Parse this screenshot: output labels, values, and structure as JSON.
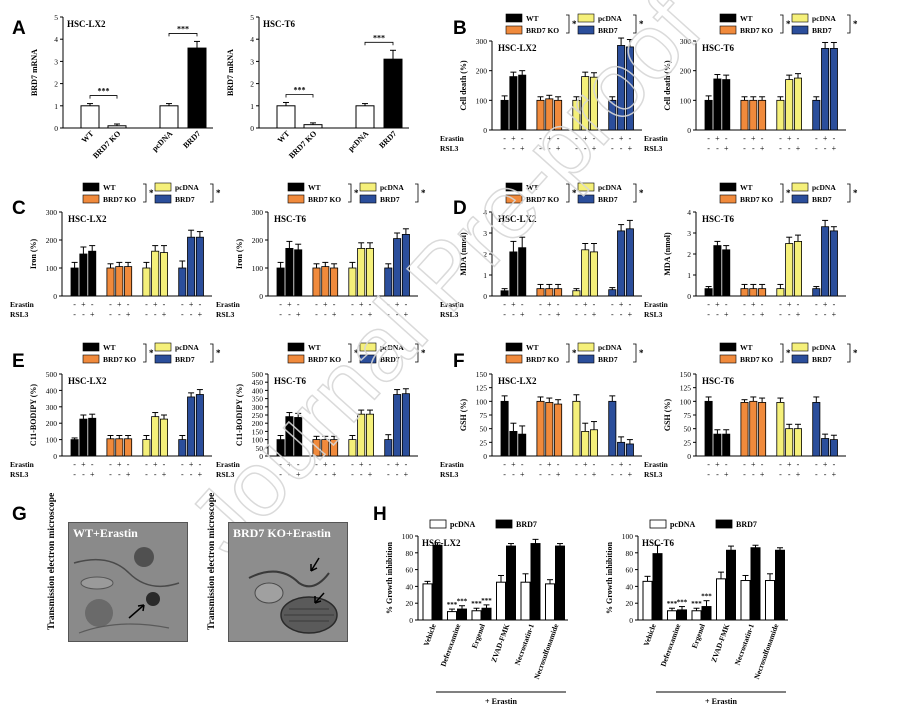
{
  "colors": {
    "wt": "#ffffff",
    "ko": "#000000",
    "ko_b": "#f08a3c",
    "pcdna": "#f5f07a",
    "brd7": "#2b4e9b",
    "watermark": "#d6d6d6"
  },
  "watermark_text": "Journal Pre-proof",
  "panels": {
    "A": {
      "letter": "A"
    },
    "B": {
      "letter": "B"
    },
    "C": {
      "letter": "C"
    },
    "D": {
      "letter": "D"
    },
    "E": {
      "letter": "E"
    },
    "F": {
      "letter": "F"
    },
    "G": {
      "letter": "G"
    },
    "H": {
      "letter": "H"
    }
  },
  "legend_labels": {
    "wt": "WT",
    "ko": "BRD7 KO",
    "pcdna": "pcDNA",
    "brd7": "BRD7",
    "star": "*"
  },
  "row_labels": {
    "erastin": "Erastin",
    "rsl3": "RSL3"
  },
  "treatment_rows": {
    "erastin": [
      "-",
      "+",
      "-",
      "-",
      "+",
      "-",
      "-",
      "+",
      "-",
      "-",
      "+",
      "-"
    ],
    "rsl3": [
      "-",
      "-",
      "+",
      "-",
      "-",
      "+",
      "-",
      "-",
      "+",
      "-",
      "-",
      "+"
    ]
  },
  "G": {
    "side_label": "Transmission electron microscope",
    "images": [
      {
        "label": "WT+Erastin"
      },
      {
        "label": "BRD7 KO+Erastin"
      }
    ]
  },
  "H_footer": "+ Erastin",
  "chart_data": [
    {
      "id": "A1",
      "type": "bar",
      "title": "HSC-LX2",
      "ylabel": "BRD7 mRNA",
      "ylim": [
        0,
        5
      ],
      "yticks": [
        0,
        1,
        2,
        3,
        4,
        5
      ],
      "categories": [
        "WT",
        "BRD7 KO",
        "pcDNA",
        "BRD7"
      ],
      "values": [
        1.0,
        0.1,
        1.0,
        3.6
      ],
      "errors": [
        0.1,
        0.08,
        0.1,
        0.3
      ],
      "significance": [
        "***",
        "***"
      ]
    },
    {
      "id": "A2",
      "type": "bar",
      "title": "HSC-T6",
      "ylabel": "BRD7 mRNA",
      "ylim": [
        0,
        5
      ],
      "yticks": [
        0,
        1,
        2,
        3,
        4,
        5
      ],
      "categories": [
        "WT",
        "BRD7 KO",
        "pcDNA",
        "BRD7"
      ],
      "values": [
        1.0,
        0.15,
        1.0,
        3.1
      ],
      "errors": [
        0.15,
        0.08,
        0.1,
        0.4
      ],
      "significance": [
        "***",
        "***"
      ]
    },
    {
      "id": "B1",
      "type": "bar",
      "title": "HSC-LX2",
      "ylabel": "Cell death (%)",
      "ylim": [
        0,
        300
      ],
      "yticks": [
        0,
        100,
        200,
        300
      ],
      "values": [
        100,
        180,
        185,
        100,
        105,
        100,
        100,
        180,
        178,
        100,
        285,
        280
      ],
      "errors": [
        15,
        15,
        15,
        12,
        12,
        12,
        12,
        15,
        15,
        12,
        25,
        25
      ]
    },
    {
      "id": "B2",
      "type": "bar",
      "title": "HSC-T6",
      "ylabel": "Cell death (%)",
      "ylim": [
        0,
        300
      ],
      "yticks": [
        0,
        100,
        200,
        300
      ],
      "values": [
        100,
        172,
        170,
        100,
        100,
        100,
        100,
        170,
        175,
        100,
        275,
        275
      ],
      "errors": [
        15,
        15,
        15,
        12,
        12,
        12,
        12,
        15,
        15,
        12,
        20,
        20
      ]
    },
    {
      "id": "C1",
      "type": "bar",
      "title": "HSC-LX2",
      "ylabel": "Iron (%)",
      "ylim": [
        0,
        300
      ],
      "yticks": [
        0,
        100,
        200,
        300
      ],
      "values": [
        100,
        150,
        160,
        100,
        105,
        105,
        100,
        160,
        155,
        100,
        210,
        210
      ],
      "errors": [
        20,
        25,
        20,
        15,
        15,
        15,
        20,
        20,
        25,
        25,
        25,
        20
      ]
    },
    {
      "id": "C2",
      "type": "bar",
      "title": "HSC-T6",
      "ylabel": "Iron (%)",
      "ylim": [
        0,
        300
      ],
      "yticks": [
        0,
        100,
        200,
        300
      ],
      "values": [
        100,
        170,
        165,
        100,
        105,
        100,
        100,
        170,
        170,
        100,
        205,
        220
      ],
      "errors": [
        20,
        25,
        20,
        15,
        15,
        15,
        20,
        20,
        20,
        15,
        20,
        20
      ]
    },
    {
      "id": "D1",
      "type": "bar",
      "title": "HSC-LX2",
      "ylabel": "MDA (nmol)",
      "ylim": [
        0,
        4
      ],
      "yticks": [
        0,
        1,
        2,
        3,
        4
      ],
      "values": [
        0.25,
        2.1,
        2.3,
        0.35,
        0.35,
        0.35,
        0.25,
        2.2,
        2.1,
        0.3,
        3.1,
        3.2
      ],
      "errors": [
        0.1,
        0.5,
        0.5,
        0.2,
        0.2,
        0.2,
        0.1,
        0.3,
        0.4,
        0.1,
        0.3,
        0.4
      ]
    },
    {
      "id": "D2",
      "type": "bar",
      "title": "HSC-T6",
      "ylabel": "MDA (nmol)",
      "ylim": [
        0,
        4
      ],
      "yticks": [
        0,
        1,
        2,
        3,
        4
      ],
      "values": [
        0.35,
        2.4,
        2.2,
        0.35,
        0.35,
        0.35,
        0.35,
        2.5,
        2.6,
        0.35,
        3.3,
        3.1
      ],
      "errors": [
        0.1,
        0.2,
        0.2,
        0.2,
        0.2,
        0.2,
        0.2,
        0.3,
        0.3,
        0.1,
        0.3,
        0.2
      ]
    },
    {
      "id": "E1",
      "type": "bar",
      "title": "HSC-LX2",
      "ylabel": "C11-BODIPY (%)",
      "ylim": [
        0,
        500
      ],
      "yticks": [
        0,
        100,
        200,
        300,
        400,
        500
      ],
      "values": [
        100,
        225,
        230,
        105,
        105,
        105,
        100,
        240,
        225,
        100,
        360,
        375
      ],
      "errors": [
        10,
        25,
        25,
        20,
        20,
        20,
        25,
        25,
        25,
        25,
        25,
        30
      ]
    },
    {
      "id": "E2",
      "type": "bar",
      "title": "HSC-T6",
      "ylabel": "C11-BODIPY (%)",
      "ylim": [
        0,
        500
      ],
      "yticks": [
        0,
        50,
        100,
        150,
        200,
        250,
        300,
        350,
        400,
        450,
        500
      ],
      "values": [
        100,
        240,
        235,
        100,
        100,
        100,
        100,
        255,
        255,
        100,
        375,
        380
      ],
      "errors": [
        25,
        25,
        25,
        20,
        20,
        20,
        25,
        25,
        25,
        30,
        30,
        30
      ]
    },
    {
      "id": "F1",
      "type": "bar",
      "title": "HSC-LX2",
      "ylabel": "GSH (%)",
      "ylim": [
        0,
        150
      ],
      "yticks": [
        0,
        25,
        50,
        75,
        100,
        125,
        150
      ],
      "values": [
        100,
        45,
        40,
        100,
        98,
        95,
        100,
        45,
        48,
        100,
        25,
        22
      ],
      "errors": [
        10,
        15,
        15,
        8,
        8,
        8,
        12,
        15,
        15,
        10,
        10,
        8
      ]
    },
    {
      "id": "F2",
      "type": "bar",
      "title": "HSC-T6",
      "ylabel": "GSH (%)",
      "ylim": [
        0,
        150
      ],
      "yticks": [
        0,
        25,
        50,
        75,
        100,
        125,
        150
      ],
      "values": [
        100,
        40,
        40,
        98,
        100,
        98,
        98,
        50,
        50,
        98,
        32,
        30
      ],
      "errors": [
        8,
        8,
        8,
        5,
        8,
        8,
        8,
        8,
        8,
        10,
        8,
        8
      ]
    },
    {
      "id": "H1",
      "type": "bar",
      "title": "HSC-LX2",
      "ylabel": "% Growth inhibition",
      "ylim": [
        0,
        100
      ],
      "yticks": [
        0,
        20,
        40,
        60,
        80,
        100
      ],
      "categories": [
        "Vehicle",
        "Deferoxamine",
        "Ergenol",
        "ZVAD-FMK",
        "Necrostatin-1",
        "Necrosulfonamide"
      ],
      "series": [
        {
          "name": "pcDNA",
          "values": [
            43,
            10,
            11,
            45,
            45,
            43
          ],
          "errors": [
            3,
            3,
            3,
            8,
            10,
            5
          ]
        },
        {
          "name": "BRD7",
          "values": [
            89,
            13,
            14,
            88,
            91,
            88
          ],
          "errors": [
            3,
            4,
            4,
            3,
            5,
            3
          ]
        }
      ],
      "annotations": [
        "***",
        "***",
        "***",
        "***"
      ]
    },
    {
      "id": "H2",
      "type": "bar",
      "title": "HSC-T6",
      "ylabel": "% Growth inhibition",
      "ylim": [
        0,
        100
      ],
      "yticks": [
        0,
        20,
        40,
        60,
        80,
        100
      ],
      "categories": [
        "Vehicle",
        "Deferoxamine",
        "Ergenol",
        "ZVAD-FMK",
        "Necrostatin-1",
        "Necrosulfonamide"
      ],
      "series": [
        {
          "name": "pcDNA",
          "values": [
            46,
            11,
            11,
            49,
            47,
            47
          ],
          "errors": [
            6,
            3,
            3,
            8,
            6,
            8
          ]
        },
        {
          "name": "BRD7",
          "values": [
            79,
            12,
            16,
            83,
            86,
            83
          ],
          "errors": [
            10,
            4,
            7,
            5,
            3,
            3
          ]
        }
      ],
      "annotations": [
        "***",
        "***",
        "***",
        "***"
      ]
    }
  ]
}
